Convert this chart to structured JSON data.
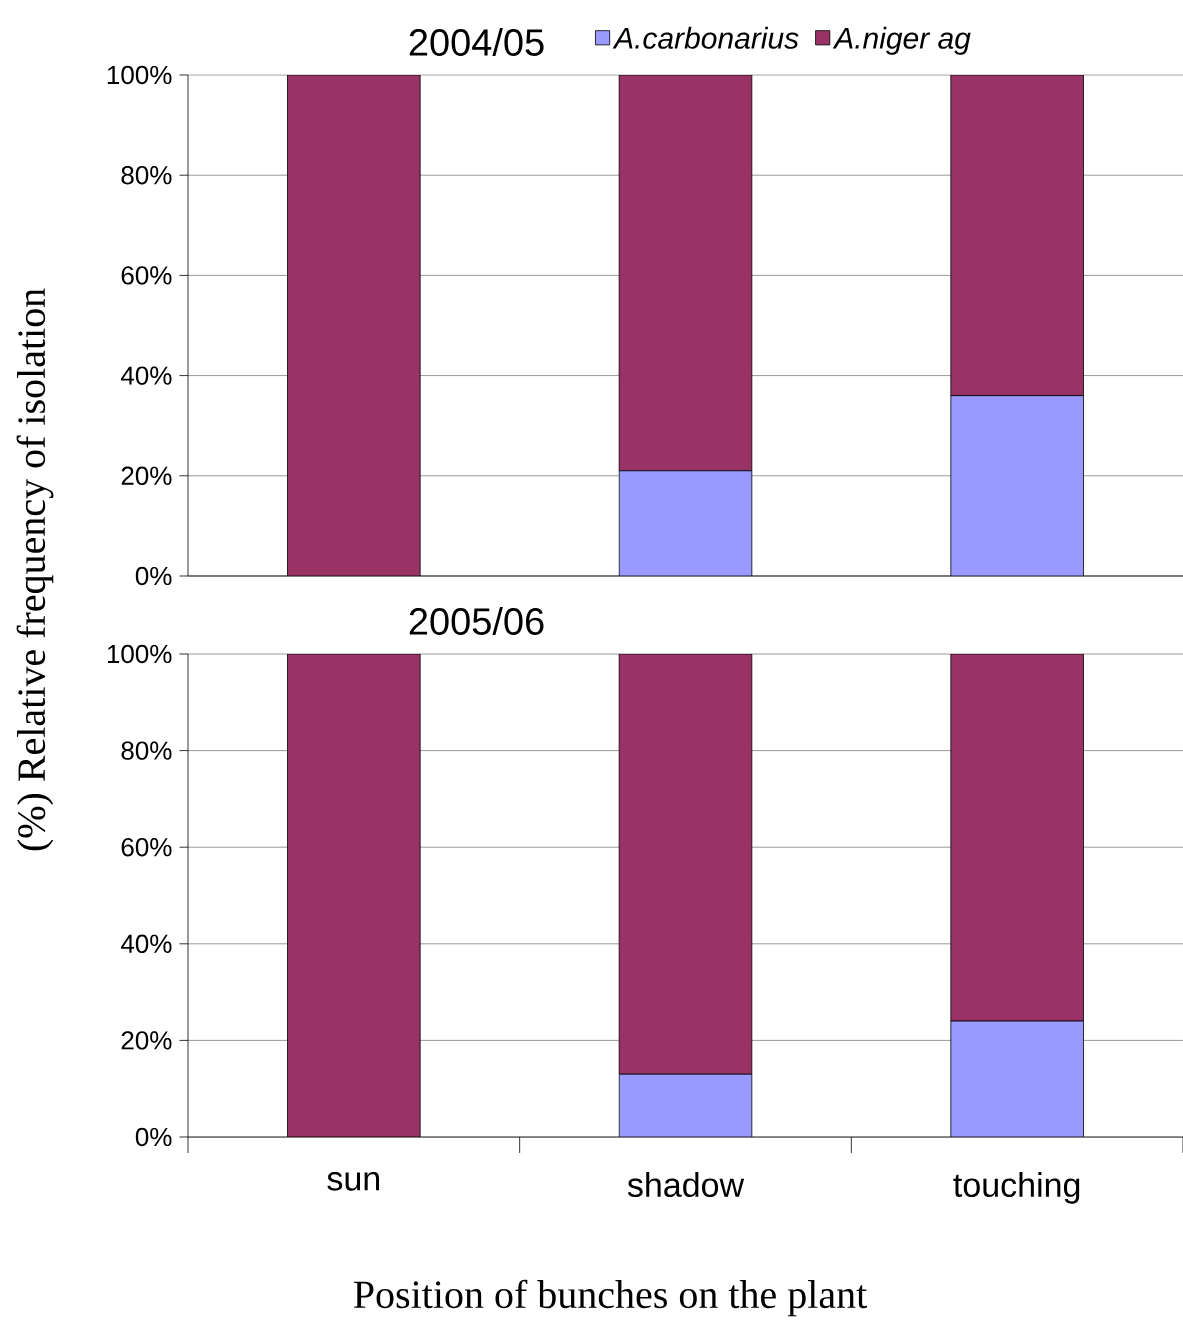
{
  "chart_data": [
    {
      "type": "bar",
      "title": "2004/05",
      "ylabel": "(%) Relative frequency of isolation",
      "categories": [
        null,
        null,
        null
      ],
      "stacked": true,
      "series": [
        {
          "name": "A.carbonarius",
          "color": "#9999ff",
          "values": [
            0,
            21,
            36
          ]
        },
        {
          "name": "A.niger ag",
          "color": "#993366",
          "values": [
            100,
            79,
            64
          ]
        }
      ],
      "ylim": [
        0,
        100
      ],
      "yticks": [
        {
          "value": 0,
          "label": "0%"
        },
        {
          "value": 20,
          "label": "20%"
        },
        {
          "value": 40,
          "label": "40%"
        },
        {
          "value": 60,
          "label": "60%"
        },
        {
          "value": 80,
          "label": "80%"
        },
        {
          "value": 100,
          "label": "100%"
        }
      ],
      "grid": "y",
      "legend": "top",
      "tick_labels": "y"
    },
    {
      "type": "bar",
      "title": "2005/06",
      "xlabel": "Position of bunches on the plant",
      "categories": [
        "sun",
        "shadow",
        "touching"
      ],
      "stacked": true,
      "series": [
        {
          "color": "#9999ff",
          "values": [
            0,
            13,
            24
          ]
        },
        {
          "color": "#993366",
          "values": [
            100,
            87,
            76
          ]
        }
      ],
      "ylim": [
        0,
        100
      ],
      "yticks": [
        {
          "value": 0,
          "label": "0%"
        },
        {
          "value": 20,
          "label": "20%"
        },
        {
          "value": 40,
          "label": "40%"
        },
        {
          "value": 60,
          "label": "60%"
        },
        {
          "value": 80,
          "label": "80%"
        },
        {
          "value": 100,
          "label": "100%"
        }
      ],
      "grid": "y"
    }
  ]
}
